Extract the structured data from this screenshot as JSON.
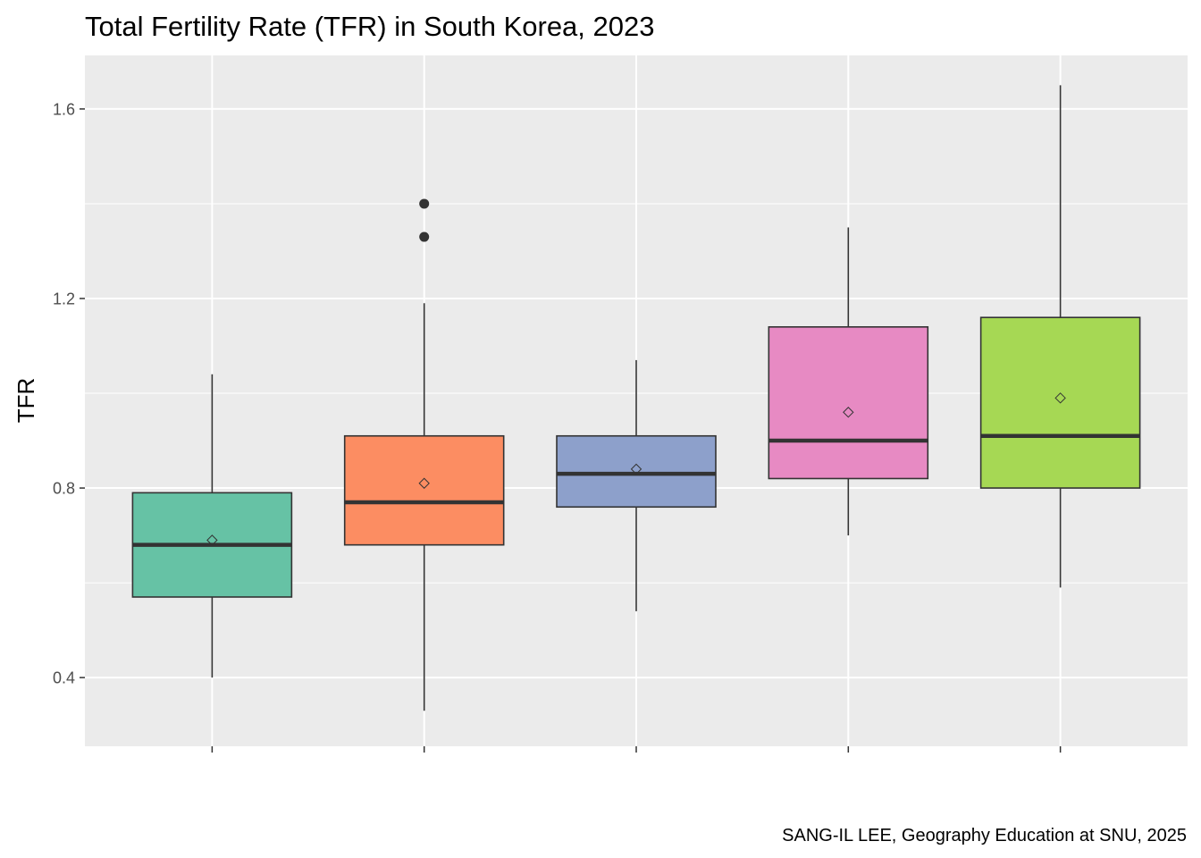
{
  "chart_data": {
    "type": "boxplot",
    "title": "Total Fertility Rate (TFR) in South Korea, 2023",
    "ylabel": "TFR",
    "xlabel": "",
    "caption": "SANG-IL LEE, Geography Education at SNU, 2025",
    "ylim": [
      0.255,
      1.713
    ],
    "y_ticks": [
      0.4,
      0.8,
      1.2,
      1.6
    ],
    "y_tick_labels": [
      "0.4",
      "0.8",
      "1.2",
      "1.6"
    ],
    "grid": true,
    "legend": "none",
    "panel_color": "#ebebeb",
    "grid_color": "#ffffff",
    "boxes": [
      {
        "fill": "#66c2a5",
        "whisker_low": 0.4,
        "q1": 0.57,
        "median": 0.68,
        "q3": 0.79,
        "whisker_high": 1.04,
        "mean": 0.69,
        "outliers": []
      },
      {
        "fill": "#fc8d62",
        "whisker_low": 0.33,
        "q1": 0.68,
        "median": 0.77,
        "q3": 0.91,
        "whisker_high": 1.19,
        "mean": 0.81,
        "outliers": [
          1.33,
          1.4
        ]
      },
      {
        "fill": "#8da0cb",
        "whisker_low": 0.54,
        "q1": 0.76,
        "median": 0.83,
        "q3": 0.91,
        "whisker_high": 1.07,
        "mean": 0.84,
        "outliers": []
      },
      {
        "fill": "#e78ac3",
        "whisker_low": 0.7,
        "q1": 0.82,
        "median": 0.9,
        "q3": 1.14,
        "whisker_high": 1.35,
        "mean": 0.96,
        "outliers": []
      },
      {
        "fill": "#a6d854",
        "whisker_low": 0.59,
        "q1": 0.8,
        "median": 0.91,
        "q3": 1.16,
        "whisker_high": 1.65,
        "mean": 0.99,
        "outliers": []
      }
    ]
  }
}
